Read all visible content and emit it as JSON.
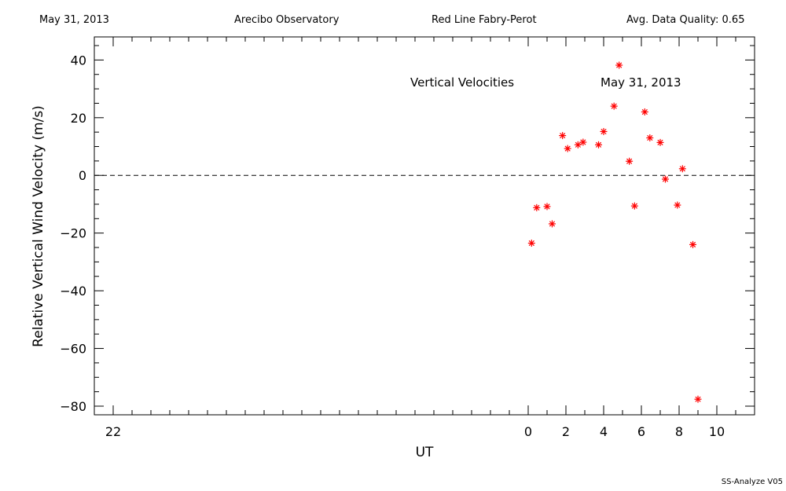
{
  "header": {
    "date": "May 31, 2013",
    "observatory": "Arecibo Observatory",
    "instrument": "Red Line Fabry-Perot",
    "quality": "Avg. Data Quality: 0.65"
  },
  "footer": "SS-Analyze V05",
  "chart_data": {
    "type": "scatter",
    "title": "Vertical Velocities",
    "annotation": "May 31, 2013",
    "xlabel": "UT",
    "ylabel": "Relative Vertical Wind Velocity (m/s)",
    "xlim": [
      -23,
      12
    ],
    "ylim": [
      -83,
      48
    ],
    "x_ticks": [
      -22,
      0,
      2,
      4,
      6,
      8,
      10
    ],
    "x_tick_labels": [
      "22",
      "0",
      "2",
      "4",
      "6",
      "8",
      "10"
    ],
    "y_ticks": [
      40,
      20,
      0,
      -20,
      -40,
      -60,
      -80
    ],
    "y_tick_labels": [
      "40",
      "20",
      "0",
      "−20",
      "−40",
      "−60",
      "−80"
    ],
    "reference_line": {
      "y": 0,
      "style": "dashed"
    },
    "marker_color": "#ff0000",
    "marker": "asterisk",
    "points": [
      {
        "x": 0.18,
        "y": -23.5
      },
      {
        "x": 0.45,
        "y": -11.2
      },
      {
        "x": 1.0,
        "y": -10.8
      },
      {
        "x": 1.27,
        "y": -16.8
      },
      {
        "x": 1.82,
        "y": 13.8
      },
      {
        "x": 2.09,
        "y": 9.3
      },
      {
        "x": 2.64,
        "y": 10.6
      },
      {
        "x": 2.91,
        "y": 11.5
      },
      {
        "x": 3.73,
        "y": 10.6
      },
      {
        "x": 4.0,
        "y": 15.2
      },
      {
        "x": 4.55,
        "y": 24.0
      },
      {
        "x": 4.82,
        "y": 38.2
      },
      {
        "x": 5.36,
        "y": 4.9
      },
      {
        "x": 5.64,
        "y": -10.6
      },
      {
        "x": 6.18,
        "y": 22.0
      },
      {
        "x": 6.45,
        "y": 13.0
      },
      {
        "x": 7.0,
        "y": 11.4
      },
      {
        "x": 7.27,
        "y": -1.3
      },
      {
        "x": 7.91,
        "y": -10.3
      },
      {
        "x": 8.18,
        "y": 2.3
      },
      {
        "x": 8.73,
        "y": -24.0
      },
      {
        "x": 9.0,
        "y": -77.6
      }
    ]
  }
}
